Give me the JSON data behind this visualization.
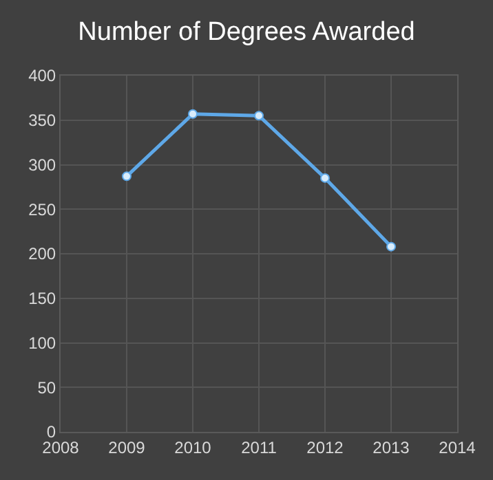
{
  "chart_data": {
    "type": "line",
    "title": "Number of Degrees Awarded",
    "x": [
      2009,
      2010,
      2011,
      2012,
      2013
    ],
    "series": [
      {
        "color": "#5ea8e8",
        "values": [
          287,
          357,
          355,
          285,
          208
        ]
      }
    ],
    "xlim": [
      2008,
      2014
    ],
    "xticks": [
      2008,
      2009,
      2010,
      2011,
      2012,
      2013,
      2014
    ],
    "ylim": [
      0,
      400
    ],
    "yticks": [
      0,
      50,
      100,
      150,
      200,
      250,
      300,
      350,
      400
    ],
    "grid": true,
    "marker": "circle",
    "line_style": "solid"
  }
}
